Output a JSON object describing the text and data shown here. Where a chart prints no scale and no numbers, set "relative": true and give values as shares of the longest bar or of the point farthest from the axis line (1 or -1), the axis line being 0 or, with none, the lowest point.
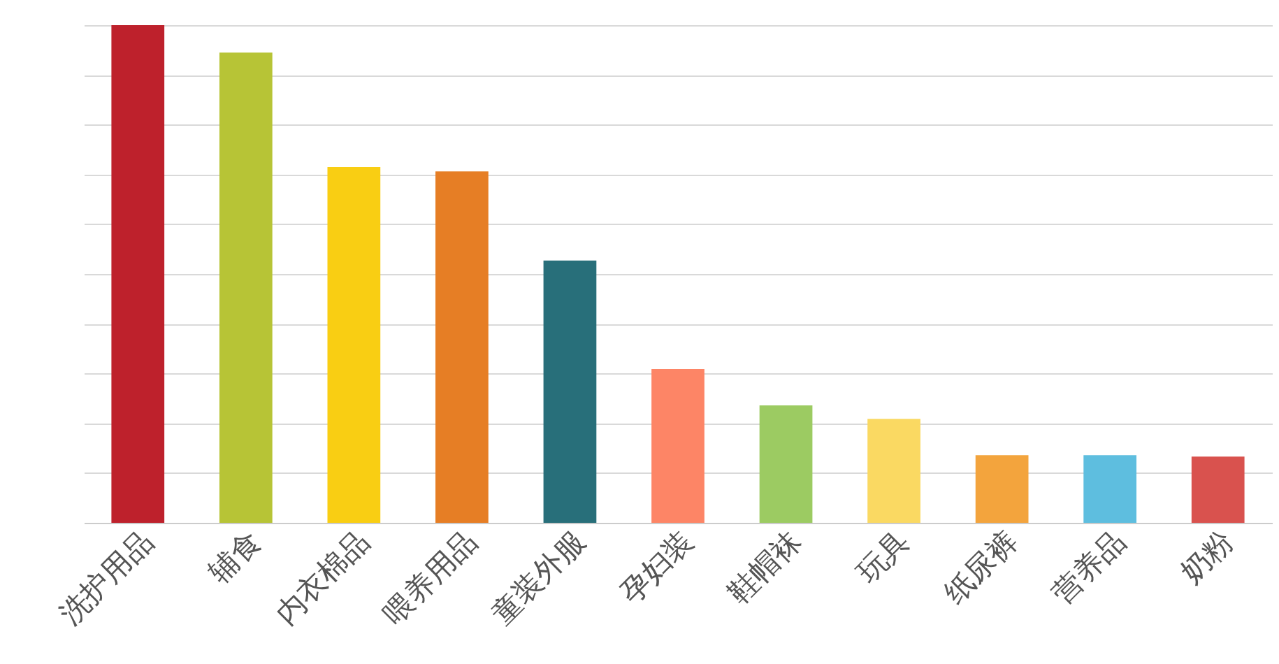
{
  "chart_data": {
    "type": "bar",
    "relative": true,
    "grid": "y",
    "categories": [
      "洗护用品",
      "辅食",
      "内衣棉品",
      "喂养用品",
      "童装外服",
      "孕妇装",
      "鞋帽袜",
      "玩具",
      "纸尿裤",
      "营养品",
      "奶粉"
    ],
    "values": [
      1,
      0.945,
      0.715,
      0.706,
      0.527,
      0.309,
      0.236,
      0.209,
      0.136,
      0.136,
      0.133
    ],
    "colors": [
      "#be212c",
      "#b7c436",
      "#f9ce13",
      "#e67e25",
      "#286f7a",
      "#fd8566",
      "#9ccb62",
      "#fad962",
      "#f3a43d",
      "#5ebedf",
      "#d9524e"
    ]
  }
}
